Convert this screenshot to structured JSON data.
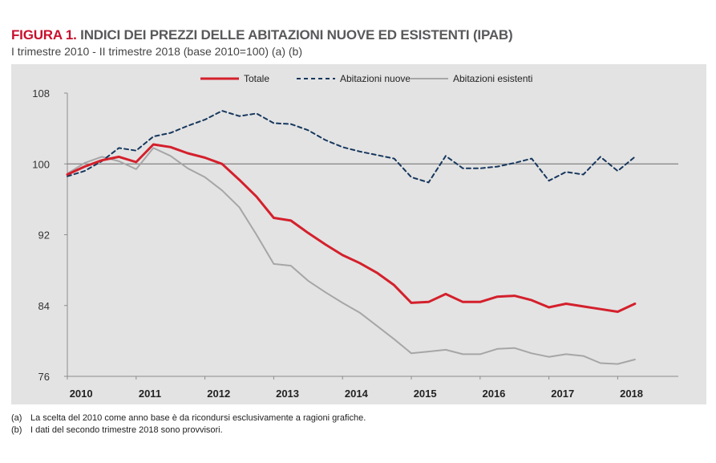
{
  "figure": {
    "label": "FIGURA 1.",
    "title": "INDICI DEI PREZZI DELLE ABITAZIONI NUOVE ED ESISTENTI (IPAB)",
    "subtitle": "I trimestre 2010 - II trimestre 2018 (base 2010=100) (a) (b)"
  },
  "notes": [
    {
      "mark": "(a)",
      "text": "La scelta del 2010 come anno base è da ricondursi esclusivamente a ragioni grafiche."
    },
    {
      "mark": "(b)",
      "text": "I dati del secondo trimestre 2018 sono provvisori."
    }
  ],
  "colors": {
    "totale": "#d4202c",
    "nuove": "#17375e",
    "esistenti": "#a6a6a6",
    "panel": "#e3e3e3",
    "baseline": "#6d6d6d"
  },
  "chart_data": {
    "type": "line",
    "title": "INDICI DEI PREZZI DELLE ABITAZIONI NUOVE ED ESISTENTI (IPAB)",
    "xlabel": "",
    "ylabel": "",
    "x": [
      "2010 T1",
      "2010 T2",
      "2010 T3",
      "2010 T4",
      "2011 T1",
      "2011 T2",
      "2011 T3",
      "2011 T4",
      "2012 T1",
      "2012 T2",
      "2012 T3",
      "2012 T4",
      "2013 T1",
      "2013 T2",
      "2013 T3",
      "2013 T4",
      "2014 T1",
      "2014 T2",
      "2014 T3",
      "2014 T4",
      "2015 T1",
      "2015 T2",
      "2015 T3",
      "2015 T4",
      "2016 T1",
      "2016 T2",
      "2016 T3",
      "2016 T4",
      "2017 T1",
      "2017 T2",
      "2017 T3",
      "2017 T4",
      "2018 T1",
      "2018 T2"
    ],
    "year_labels": [
      "2010",
      "2011",
      "2012",
      "2013",
      "2014",
      "2015",
      "2016",
      "2017",
      "2018"
    ],
    "ylim": [
      76,
      108
    ],
    "yticks": [
      76,
      84,
      92,
      100,
      108
    ],
    "reference_line": 100,
    "grid": false,
    "legend_position": "top-center",
    "series": [
      {
        "name": "Totale",
        "style": "solid",
        "values": [
          98.8,
          99.7,
          100.4,
          100.8,
          100.2,
          102.2,
          101.9,
          101.2,
          100.7,
          100.0,
          98.2,
          96.3,
          93.9,
          93.6,
          92.2,
          90.9,
          89.7,
          88.8,
          87.7,
          86.3,
          84.3,
          84.4,
          85.3,
          84.4,
          84.4,
          85.0,
          85.1,
          84.6,
          83.8,
          84.2,
          83.9,
          83.6,
          83.3,
          84.2
        ]
      },
      {
        "name": "Abitazioni nuove",
        "style": "dashed",
        "values": [
          98.6,
          99.2,
          100.3,
          101.8,
          101.5,
          103.1,
          103.5,
          104.3,
          105.0,
          106.0,
          105.4,
          105.7,
          104.6,
          104.5,
          103.8,
          102.7,
          101.9,
          101.4,
          101.0,
          100.6,
          98.5,
          97.9,
          100.9,
          99.5,
          99.5,
          99.7,
          100.1,
          100.6,
          98.1,
          99.1,
          98.8,
          100.8,
          99.2,
          100.8
        ]
      },
      {
        "name": "Abitazioni esistenti",
        "style": "solid",
        "values": [
          98.9,
          100.1,
          100.8,
          100.3,
          99.4,
          101.8,
          100.9,
          99.5,
          98.5,
          97.0,
          95.1,
          92.0,
          88.7,
          88.5,
          86.8,
          85.5,
          84.3,
          83.2,
          81.7,
          80.2,
          78.6,
          78.8,
          79.0,
          78.5,
          78.5,
          79.1,
          79.2,
          78.6,
          78.2,
          78.5,
          78.3,
          77.5,
          77.4,
          77.9
        ]
      }
    ]
  }
}
